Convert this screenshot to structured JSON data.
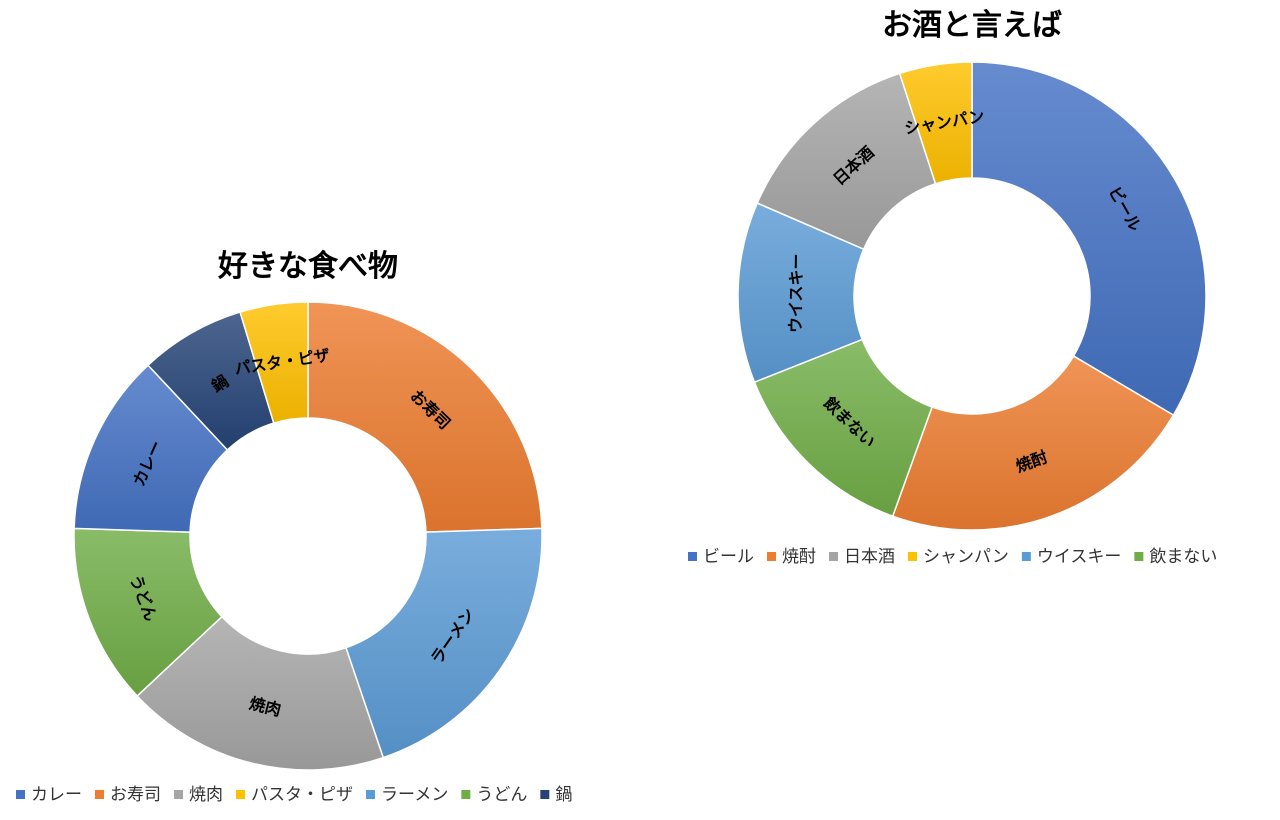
{
  "chart_data": [
    {
      "type": "pie",
      "variant": "donut",
      "title": "好きな食べ物",
      "legend_position": "bottom",
      "categories": [
        "カレー",
        "お寿司",
        "焼肉",
        "パスタ・ピザ",
        "ラーメン",
        "うどん",
        "鍋"
      ],
      "slices_clockwise_from_top": [
        "お寿司",
        "ラーメン",
        "焼肉",
        "うどん",
        "カレー",
        "鍋",
        "パスタ・ピザ"
      ],
      "values_percent": {
        "お寿司": 23.5,
        "ラーメン": 19.5,
        "焼肉": 17.5,
        "うどん": 12.0,
        "カレー": 12.0,
        "鍋": 7.0,
        "パスタ・ピザ": 4.5
      },
      "colors": {
        "カレー": "#4472C4",
        "お寿司": "#ED7D31",
        "焼肉": "#A5A5A5",
        "パスタ・ピザ": "#FFC000",
        "ラーメン": "#5B9BD5",
        "うどん": "#70AD47",
        "鍋": "#264478"
      }
    },
    {
      "type": "pie",
      "variant": "donut",
      "title": "お酒と言えば",
      "legend_position": "bottom",
      "categories": [
        "ビール",
        "焼酎",
        "日本酒",
        "シャンパン",
        "ウイスキー",
        "飲まない"
      ],
      "slices_clockwise_from_top": [
        "ビール",
        "焼酎",
        "飲まない",
        "ウイスキー",
        "日本酒",
        "シャンパン"
      ],
      "values_percent": {
        "ビール": 33.5,
        "焼酎": 22.0,
        "飲まない": 13.5,
        "ウイスキー": 12.5,
        "日本酒": 13.5,
        "シャンパン": 5.0
      },
      "colors": {
        "ビール": "#4472C4",
        "焼酎": "#ED7D31",
        "日本酒": "#A5A5A5",
        "シャンパン": "#FFC000",
        "ウイスキー": "#5B9BD5",
        "飲まない": "#70AD47"
      }
    }
  ]
}
